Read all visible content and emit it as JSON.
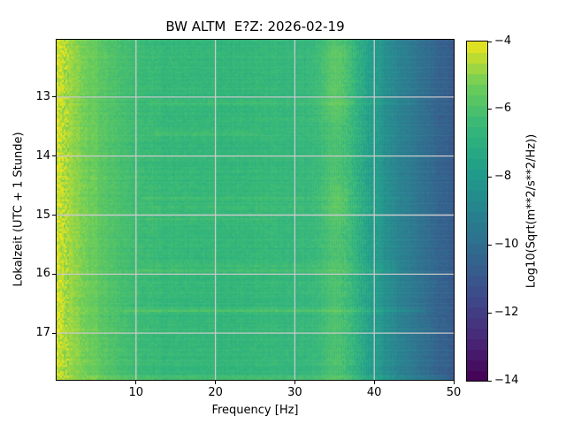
{
  "chart_data": {
    "type": "heatmap",
    "title": "BW ALTM  E?Z: 2026-02-19",
    "xlabel": "Frequency [Hz]",
    "ylabel": "Lokalzeit (UTC + 1 Stunde)",
    "colorbar_label": "Log10(Sqrt(m**2/s**2/Hz))",
    "xlim": [
      0,
      50
    ],
    "time_range_hours": [
      12.03,
      17.79
    ],
    "clim": [
      -14,
      -4
    ],
    "xticks": {
      "values": [
        10,
        20,
        30,
        40,
        50
      ],
      "labels": [
        "10",
        "20",
        "30",
        "40",
        "50"
      ]
    },
    "yticks": {
      "values": [
        13,
        14,
        15,
        16,
        17
      ],
      "labels": [
        "13",
        "14",
        "15",
        "16",
        "17"
      ]
    },
    "colorbar_ticks": {
      "values": [
        -4,
        -6,
        -8,
        -10,
        -12,
        -14
      ],
      "labels": [
        "−4",
        "−6",
        "−8",
        "−10",
        "−12",
        "−14"
      ]
    },
    "colormap": {
      "name": "viridis",
      "stops": [
        [
          0.0,
          "#440154"
        ],
        [
          0.125,
          "#482878"
        ],
        [
          0.25,
          "#3e4a89"
        ],
        [
          0.375,
          "#31688e"
        ],
        [
          0.5,
          "#26828e"
        ],
        [
          0.625,
          "#1f9e89"
        ],
        [
          0.75,
          "#35b779"
        ],
        [
          0.875,
          "#6dcd59"
        ],
        [
          1.0,
          "#ece51b"
        ]
      ],
      "steps": 32
    },
    "grid": {
      "show": true,
      "color": "#c9c9c9",
      "linewidth": 1.3
    },
    "frequency_profile_log10": [
      [
        0.2,
        -4.3
      ],
      [
        1,
        -4.6
      ],
      [
        2,
        -4.85
      ],
      [
        3.5,
        -5.2
      ],
      [
        5,
        -5.5
      ],
      [
        7,
        -5.9
      ],
      [
        10,
        -6.3
      ],
      [
        14,
        -6.5
      ],
      [
        18,
        -6.55
      ],
      [
        22,
        -6.6
      ],
      [
        26,
        -6.5
      ],
      [
        30,
        -6.6
      ],
      [
        33,
        -6.5
      ],
      [
        35,
        -6.25
      ],
      [
        37,
        -6.6
      ],
      [
        38.5,
        -7.3
      ],
      [
        40,
        -8.0
      ],
      [
        42,
        -8.7
      ],
      [
        44,
        -9.3
      ],
      [
        46,
        -9.9
      ],
      [
        48,
        -10.4
      ],
      [
        50,
        -10.8
      ]
    ],
    "horizontal_streaks": [
      {
        "time": 13.1,
        "fmin": 11,
        "fmax": 46,
        "strength": 0.35
      },
      {
        "time": 13.37,
        "fmin": 18,
        "fmax": 36,
        "strength": 0.22
      },
      {
        "time": 13.62,
        "fmin": 11,
        "fmax": 26,
        "strength": 0.35
      },
      {
        "time": 14.71,
        "fmin": 10,
        "fmax": 46,
        "strength": 0.35
      },
      {
        "time": 14.87,
        "fmin": 10,
        "fmax": 42,
        "strength": 0.3
      },
      {
        "time": 15.07,
        "fmin": 10,
        "fmax": 28,
        "strength": 0.25
      },
      {
        "time": 15.85,
        "fmin": 10,
        "fmax": 44,
        "strength": 0.28
      },
      {
        "time": 15.93,
        "fmin": 9,
        "fmax": 44,
        "strength": 0.45
      },
      {
        "time": 16.62,
        "fmin": 8,
        "fmax": 47,
        "strength": 0.55
      },
      {
        "time": 17.75,
        "fmin": 3,
        "fmax": 50,
        "strength": 0.5
      }
    ],
    "vertical_bands": [
      {
        "freq": 35.6,
        "sigma": 1.4,
        "strength": 0.3
      },
      {
        "freq": 40.6,
        "sigma": 0.3,
        "strength": 0.3
      },
      {
        "freq": 4.9,
        "sigma": 0.2,
        "strength": 0.18
      }
    ],
    "blobs": [
      {
        "freq": 35.3,
        "sigma": 1.6,
        "t0": 12.03,
        "t1": 13.45,
        "strength": 0.35
      },
      {
        "freq": 35.5,
        "sigma": 1.2,
        "t0": 14.4,
        "t1": 15.2,
        "strength": 0.25
      }
    ],
    "noise": {
      "seed": 42,
      "nf": 225,
      "nt": 160,
      "base_amp": 0.2,
      "lowfreq_extra": 0.3,
      "highband_extra": 0.12,
      "row_jitter": 0.2,
      "col_jitter": 0.16
    }
  }
}
